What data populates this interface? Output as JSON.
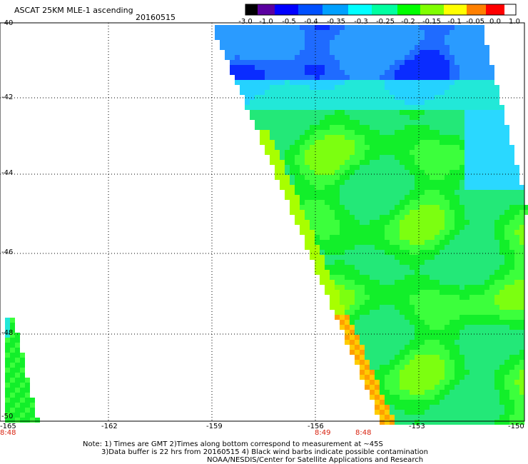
{
  "header": {
    "title": "ASCAT 25KM MLE-1 ascending",
    "date": "20160515"
  },
  "colorbar": {
    "labels": [
      "-3.0",
      "-1.0",
      "-0.5",
      "-0.4",
      "-0.35",
      "-0.3",
      "-0.25",
      "-0.2",
      "-0.15",
      "-0.1",
      "-0.05",
      "0.0",
      "1.0"
    ],
    "colors": [
      "#000000",
      "#5a00a0",
      "#0000ff",
      "#0050ff",
      "#00a0ff",
      "#00ffff",
      "#00ffa0",
      "#00ff00",
      "#80ff00",
      "#ffff00",
      "#ff8000",
      "#ff0000"
    ]
  },
  "axes": {
    "lat_labels": [
      "-40",
      "-42",
      "-44",
      "-46",
      "-48",
      "-50"
    ],
    "lon_labels": [
      "-165",
      "-162",
      "-159",
      "-156",
      "-153",
      "-150"
    ],
    "time_labels": [
      "8:48",
      "8:49",
      "8:48"
    ]
  },
  "notes": {
    "line1": "Note: 1) Times are GMT 2)Times along bottom correspond to measurement at ~45S",
    "line2": "3)Data buffer is 22 hrs from 20160515 4) Black wind barbs indicate possible contamination",
    "line3": "NOAA/NESDIS/Center for Satellite Applications and Research"
  }
}
